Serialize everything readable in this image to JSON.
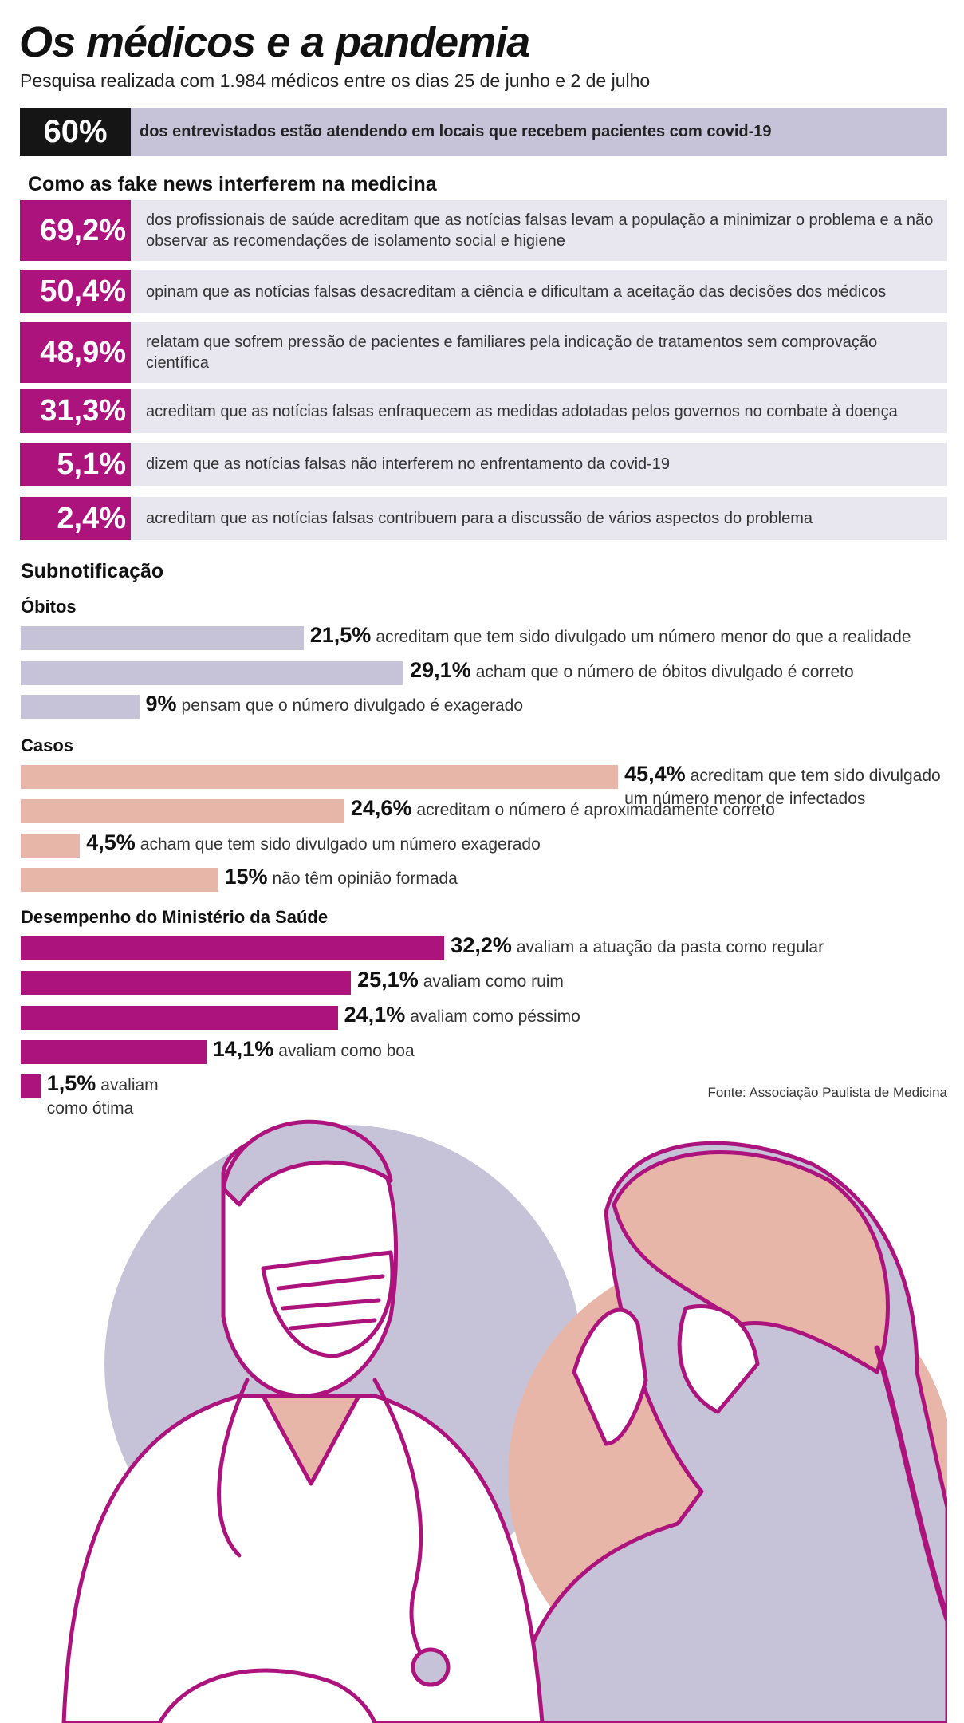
{
  "header": {
    "title": "Os médicos e a pandemia",
    "subtitle": "Pesquisa realizada com 1.984 médicos entre os dias 25 de junho e 2 de julho"
  },
  "highlight": {
    "value": "60%",
    "text": "dos entrevistados estão atendendo em locais que recebem pacientes com covid-19"
  },
  "fake_news": {
    "title": "Como as fake news interferem na medicina",
    "rows": [
      [
        "69,2%",
        "dos profissionais de saúde acreditam que as notícias falsas levam a população a minimizar o problema e a não observar as recomendações de isolamento social e higiene"
      ],
      [
        "50,4%",
        "opinam que as notícias falsas desacreditam a ciência e dificultam a aceitação das decisões dos médicos"
      ],
      [
        "48,9%",
        "relatam que sofrem pressão de pacientes e familiares pela indicação de tratamentos sem comprovação científica"
      ],
      [
        "31,3%",
        "acreditam que as notícias falsas enfraquecem as medidas adotadas pelos governos no combate à doença"
      ],
      [
        "5,1%",
        "dizem que as notícias falsas não interferem no enfrentamento da covid-19"
      ],
      [
        "2,4%",
        "acreditam que as notícias falsas contribuem para a discussão de vários aspectos do problema"
      ]
    ]
  },
  "section_title": "Subnotificação",
  "chart_data": [
    {
      "type": "bar",
      "orientation": "horizontal",
      "title": "Óbitos",
      "color": "#c6c3d9",
      "categories": [
        "acreditam que tem sido divulgado um número menor do que a realidade",
        "acham que o número de óbitos divulgado é correto",
        "pensam que o número divulgado é exagerado"
      ],
      "values": [
        21.5,
        29.1,
        9
      ],
      "value_labels": [
        "21,5%",
        "29,1%",
        "9%"
      ]
    },
    {
      "type": "bar",
      "orientation": "horizontal",
      "title": "Casos",
      "color": "#e8b6a9",
      "categories": [
        "acreditam que tem sido divulgado um número menor de infectados",
        "acreditam o número é aproximadamente correto",
        "acham que tem sido divulgado um número exagerado",
        "não têm opinião formada"
      ],
      "values": [
        45.4,
        24.6,
        4.5,
        15
      ],
      "value_labels": [
        "45,4%",
        "24,6%",
        "4,5%",
        "15%"
      ]
    },
    {
      "type": "bar",
      "orientation": "horizontal",
      "title": "Desempenho do Ministério da Saúde",
      "color": "#ad137c",
      "categories": [
        "avaliam a atuação da pasta como regular",
        "avaliam como ruim",
        "avaliam como péssimo",
        "avaliam como boa",
        "avaliam como ótima"
      ],
      "values": [
        32.2,
        25.1,
        24.1,
        14.1,
        1.5
      ],
      "value_labels": [
        "32,2%",
        "25,1%",
        "24,1%",
        "14,1%",
        "1,5%"
      ]
    }
  ],
  "source": "Fonte: Associação Paulista de Medicina"
}
